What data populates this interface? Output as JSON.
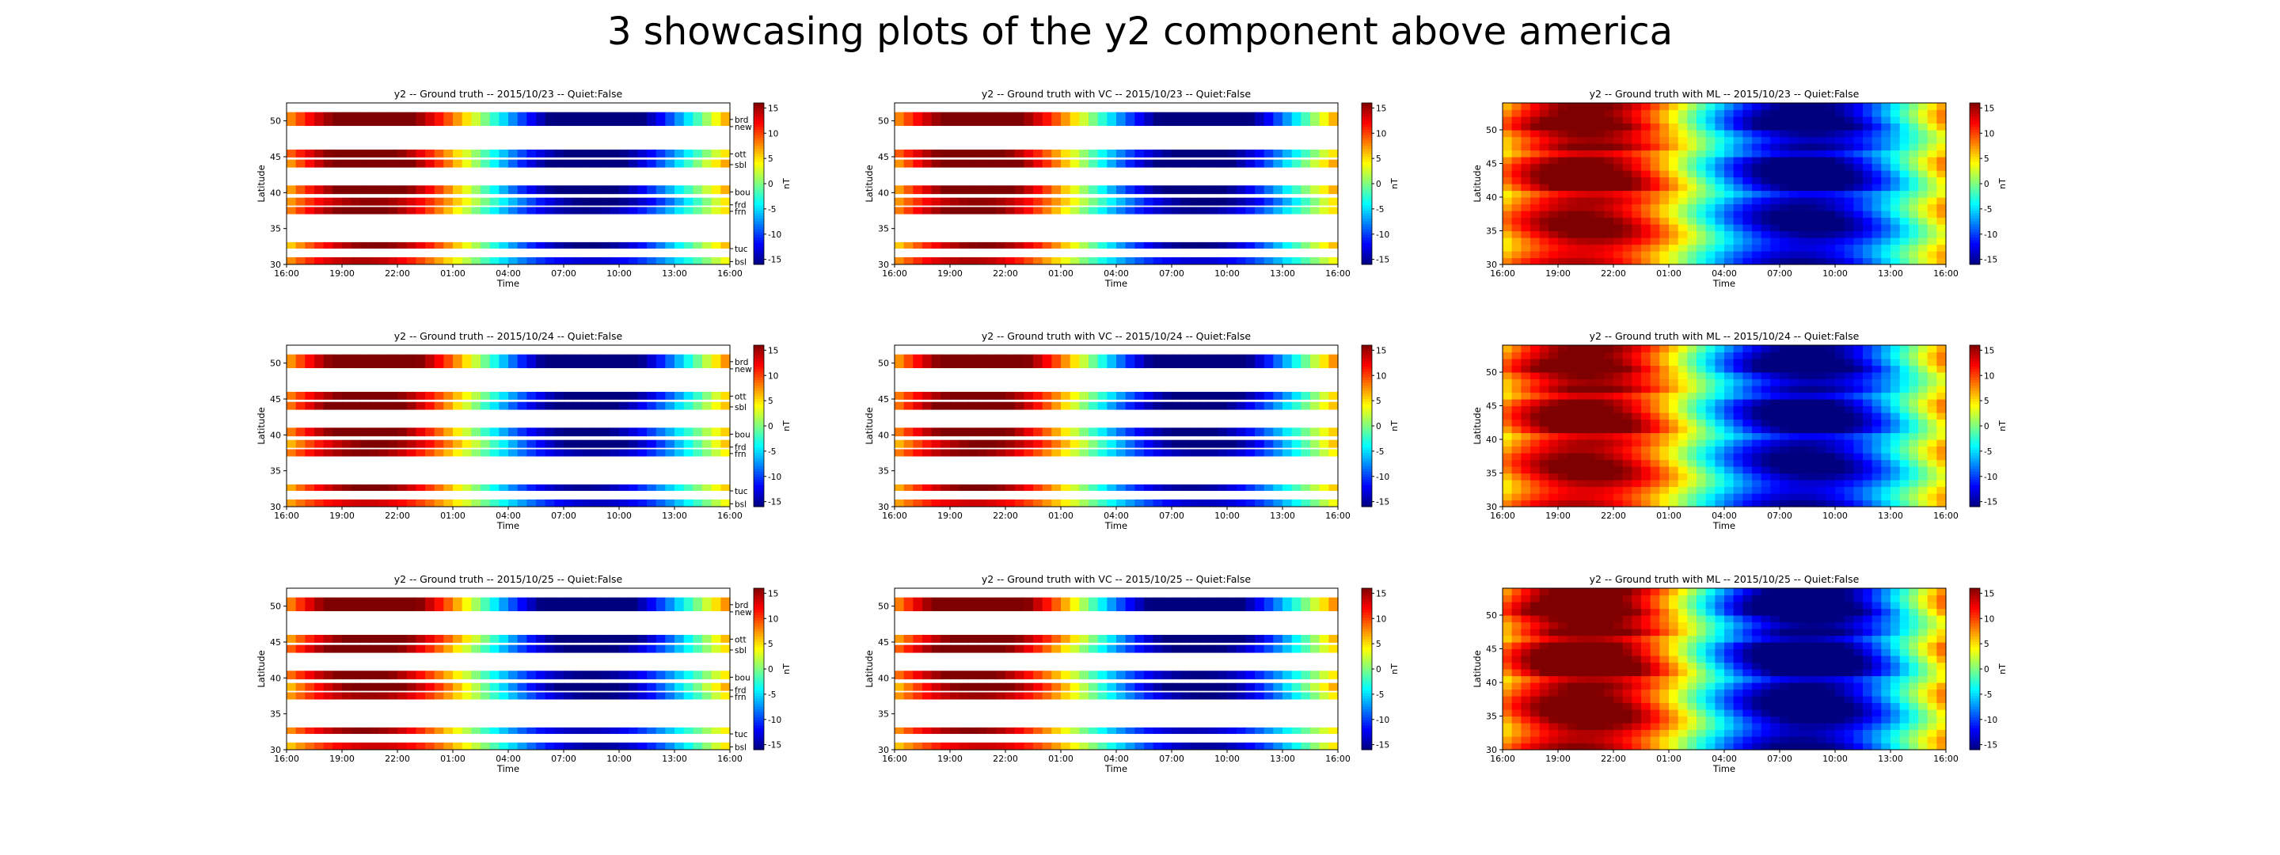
{
  "figure": {
    "title": "3 showcasing plots of the y2 component above america"
  },
  "colors": {
    "colormap_stops": [
      "#00007f",
      "#0000ff",
      "#007fff",
      "#00ffff",
      "#7fff7f",
      "#ffff00",
      "#ff7f00",
      "#ff0000",
      "#7f0000"
    ]
  },
  "chart_data": [
    {
      "type": "heatmap",
      "title": "y2 -- Ground truth -- 2015/10/23 -- Quiet:False",
      "xlabel": "Time",
      "ylabel": "Latitude",
      "colorbar_label": "nT",
      "method": "gt",
      "day": 0,
      "x_ticks": [
        "16:00",
        "19:00",
        "22:00",
        "01:00",
        "04:00",
        "07:00",
        "10:00",
        "13:00",
        "16:00"
      ],
      "y_ticks": [
        30,
        35,
        40,
        45,
        50
      ],
      "ylim": [
        30,
        52.5
      ],
      "clim": [
        -16,
        16
      ],
      "colorbar_ticks": [
        15,
        10,
        5,
        0,
        -5,
        -10,
        -15
      ],
      "stations": [
        "brd",
        "new",
        "ott",
        "sbl",
        "bou",
        "frd",
        "frn",
        "tuc",
        "bsl"
      ]
    },
    {
      "type": "heatmap",
      "title": "y2 -- Ground truth with VC -- 2015/10/23 -- Quiet:False",
      "xlabel": "Time",
      "ylabel": "Latitude",
      "colorbar_label": "nT",
      "method": "vc",
      "day": 0,
      "x_ticks": [
        "16:00",
        "19:00",
        "22:00",
        "01:00",
        "04:00",
        "07:00",
        "10:00",
        "13:00",
        "16:00"
      ],
      "y_ticks": [
        30,
        35,
        40,
        45,
        50
      ],
      "ylim": [
        30,
        52.5
      ],
      "clim": [
        -16,
        16
      ],
      "colorbar_ticks": [
        15,
        10,
        5,
        0,
        -5,
        -10,
        -15
      ]
    },
    {
      "type": "heatmap",
      "title": "y2 -- Ground truth with ML -- 2015/10/23 -- Quiet:False",
      "xlabel": "Time",
      "ylabel": "Latitude",
      "colorbar_label": "nT",
      "method": "ml",
      "day": 0,
      "x_ticks": [
        "16:00",
        "19:00",
        "22:00",
        "01:00",
        "04:00",
        "07:00",
        "10:00",
        "13:00",
        "16:00"
      ],
      "y_ticks": [
        30,
        35,
        40,
        45,
        50
      ],
      "ylim": [
        30,
        54
      ],
      "clim": [
        -16,
        16
      ],
      "colorbar_ticks": [
        15,
        10,
        5,
        0,
        -5,
        -10,
        -15
      ]
    },
    {
      "type": "heatmap",
      "title": "y2 -- Ground truth -- 2015/10/24 -- Quiet:False",
      "xlabel": "Time",
      "ylabel": "Latitude",
      "colorbar_label": "nT",
      "method": "gt",
      "day": 1,
      "x_ticks": [
        "16:00",
        "19:00",
        "22:00",
        "01:00",
        "04:00",
        "07:00",
        "10:00",
        "13:00",
        "16:00"
      ],
      "y_ticks": [
        30,
        35,
        40,
        45,
        50
      ],
      "ylim": [
        30,
        52.5
      ],
      "clim": [
        -16,
        16
      ],
      "colorbar_ticks": [
        15,
        10,
        5,
        0,
        -5,
        -10,
        -15
      ],
      "stations": [
        "brd",
        "new",
        "ott",
        "sbl",
        "bou",
        "frd",
        "frn",
        "tuc",
        "bsl"
      ]
    },
    {
      "type": "heatmap",
      "title": "y2 -- Ground truth with VC -- 2015/10/24 -- Quiet:False",
      "xlabel": "Time",
      "ylabel": "Latitude",
      "colorbar_label": "nT",
      "method": "vc",
      "day": 1,
      "x_ticks": [
        "16:00",
        "19:00",
        "22:00",
        "01:00",
        "04:00",
        "07:00",
        "10:00",
        "13:00",
        "16:00"
      ],
      "y_ticks": [
        30,
        35,
        40,
        45,
        50
      ],
      "ylim": [
        30,
        52.5
      ],
      "clim": [
        -16,
        16
      ],
      "colorbar_ticks": [
        15,
        10,
        5,
        0,
        -5,
        -10,
        -15
      ]
    },
    {
      "type": "heatmap",
      "title": "y2 -- Ground truth with ML -- 2015/10/24 -- Quiet:False",
      "xlabel": "Time",
      "ylabel": "Latitude",
      "colorbar_label": "nT",
      "method": "ml",
      "day": 1,
      "x_ticks": [
        "16:00",
        "19:00",
        "22:00",
        "01:00",
        "04:00",
        "07:00",
        "10:00",
        "13:00",
        "16:00"
      ],
      "y_ticks": [
        30,
        35,
        40,
        45,
        50
      ],
      "ylim": [
        30,
        54
      ],
      "clim": [
        -16,
        16
      ],
      "colorbar_ticks": [
        15,
        10,
        5,
        0,
        -5,
        -10,
        -15
      ]
    },
    {
      "type": "heatmap",
      "title": "y2 -- Ground truth -- 2015/10/25 -- Quiet:False",
      "xlabel": "Time",
      "ylabel": "Latitude",
      "colorbar_label": "nT",
      "method": "gt",
      "day": 2,
      "x_ticks": [
        "16:00",
        "19:00",
        "22:00",
        "01:00",
        "04:00",
        "07:00",
        "10:00",
        "13:00",
        "16:00"
      ],
      "y_ticks": [
        30,
        35,
        40,
        45,
        50
      ],
      "ylim": [
        30,
        52.5
      ],
      "clim": [
        -16,
        16
      ],
      "colorbar_ticks": [
        15,
        10,
        5,
        0,
        -5,
        -10,
        -15
      ],
      "stations": [
        "brd",
        "new",
        "ott",
        "sbl",
        "bou",
        "frd",
        "frn",
        "tuc",
        "bsl"
      ]
    },
    {
      "type": "heatmap",
      "title": "y2 -- Ground truth with VC -- 2015/10/25 -- Quiet:False",
      "xlabel": "Time",
      "ylabel": "Latitude",
      "colorbar_label": "nT",
      "method": "vc",
      "day": 2,
      "x_ticks": [
        "16:00",
        "19:00",
        "22:00",
        "01:00",
        "04:00",
        "07:00",
        "10:00",
        "13:00",
        "16:00"
      ],
      "y_ticks": [
        30,
        35,
        40,
        45,
        50
      ],
      "ylim": [
        30,
        52.5
      ],
      "clim": [
        -16,
        16
      ],
      "colorbar_ticks": [
        15,
        10,
        5,
        0,
        -5,
        -10,
        -15
      ]
    },
    {
      "type": "heatmap",
      "title": "y2 -- Ground truth with ML -- 2015/10/25 -- Quiet:False",
      "xlabel": "Time",
      "ylabel": "Latitude",
      "colorbar_label": "nT",
      "method": "ml",
      "day": 2,
      "x_ticks": [
        "16:00",
        "19:00",
        "22:00",
        "01:00",
        "04:00",
        "07:00",
        "10:00",
        "13:00",
        "16:00"
      ],
      "y_ticks": [
        30,
        35,
        40,
        45,
        50
      ],
      "ylim": [
        30,
        54
      ],
      "clim": [
        -16,
        16
      ],
      "colorbar_ticks": [
        15,
        10,
        5,
        0,
        -5,
        -10,
        -15
      ]
    }
  ]
}
